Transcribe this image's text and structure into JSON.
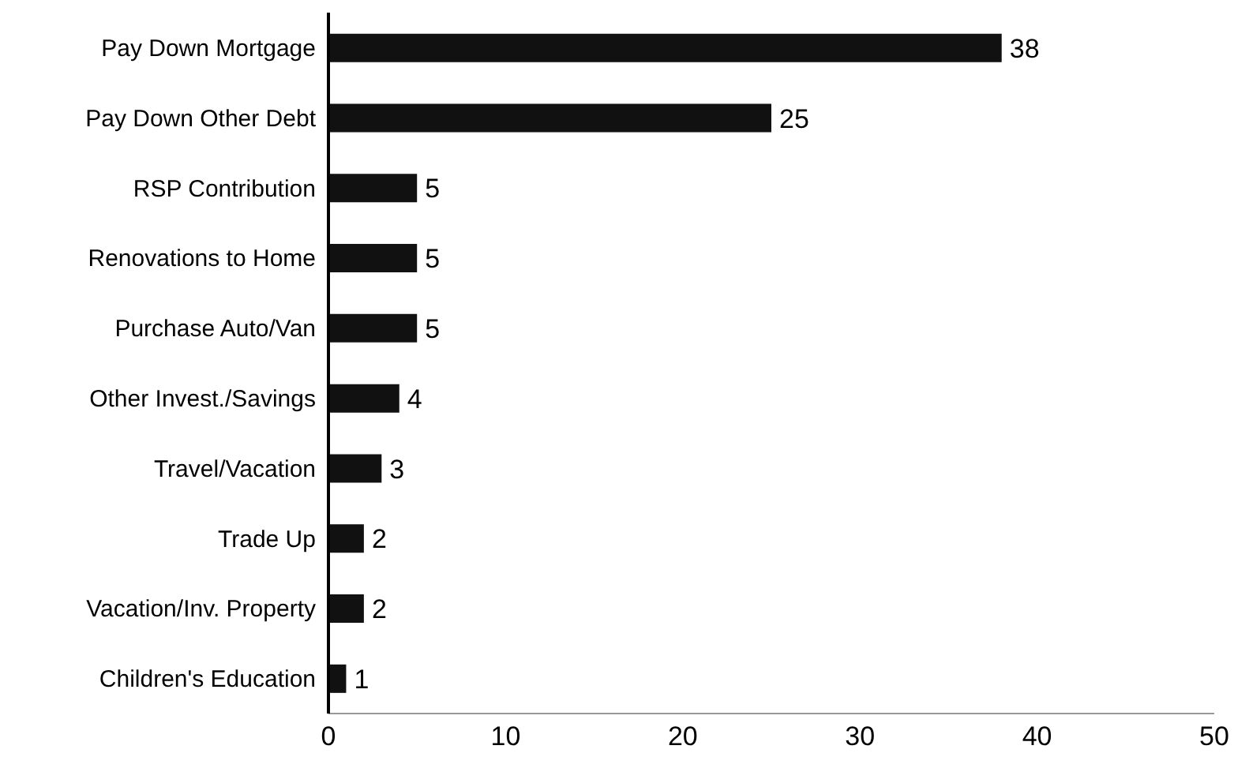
{
  "chart_data": {
    "type": "bar",
    "orientation": "horizontal",
    "categories": [
      "Pay Down Mortgage",
      "Pay Down Other Debt",
      "RSP Contribution",
      "Renovations to Home",
      "Purchase Auto/Van",
      "Other Invest./Savings",
      "Travel/Vacation",
      "Trade Up",
      "Vacation/Inv. Property",
      "Children's Education"
    ],
    "values": [
      38,
      25,
      5,
      5,
      5,
      4,
      3,
      2,
      2,
      1
    ],
    "color": "#111111",
    "xlim": [
      0,
      50
    ],
    "xticks": [
      0,
      10,
      20,
      30,
      40,
      50
    ],
    "grid": false,
    "legend": false,
    "data_labels": true
  }
}
